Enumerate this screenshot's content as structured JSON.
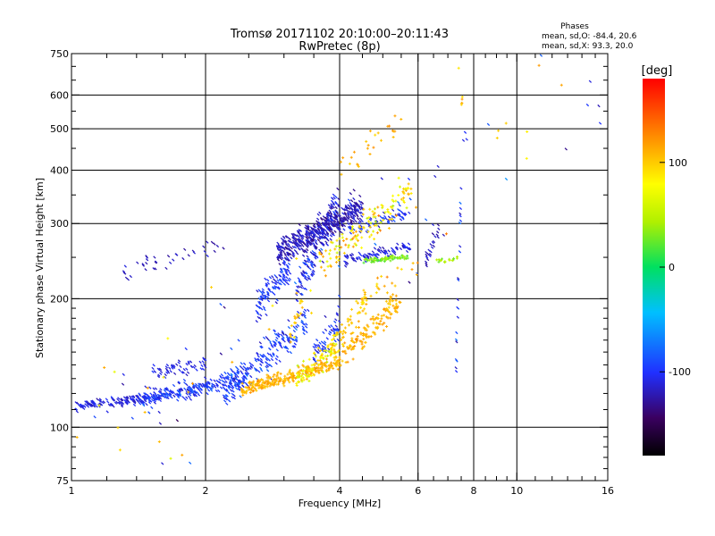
{
  "chart_data": {
    "type": "scatter",
    "title": "Tromsø 20171102 20:10:00–20:11:43",
    "subtitle": "RwPretec (8p)",
    "xlabel": "Frequency [MHz]",
    "ylabel": "Stationary phase Virtual Height [km]",
    "x_scale": "log",
    "y_scale": "log",
    "xlim": [
      1,
      16
    ],
    "ylim": [
      75,
      750
    ],
    "x_ticks": [
      1,
      2,
      4,
      6,
      8,
      10,
      16
    ],
    "x_tick_labels": [
      "1",
      "2",
      "4",
      "6",
      "8",
      "10",
      "16"
    ],
    "x_minor_ticks": [
      1.2,
      1.4,
      1.6,
      1.8,
      2.5,
      3,
      3.5,
      4.5,
      5,
      5.5,
      6.5,
      7,
      7.5,
      8.5,
      9,
      9.5,
      11,
      12,
      13,
      14,
      15
    ],
    "y_ticks": [
      75,
      100,
      200,
      300,
      400,
      500,
      600,
      750
    ],
    "y_tick_labels": [
      "75",
      "100",
      "200",
      "300",
      "400",
      "500",
      "600",
      "750"
    ],
    "y_minor_ticks": [
      80,
      85,
      90,
      95,
      110,
      120,
      130,
      140,
      150,
      160,
      170,
      180,
      190,
      250,
      350,
      450,
      550,
      650,
      700
    ],
    "grid": true,
    "grid_x": [
      2,
      4,
      6,
      8,
      10
    ],
    "grid_y": [
      100,
      200,
      300,
      400,
      500,
      600
    ],
    "stats": {
      "heading": "Phases",
      "line_o": "mean, sd,O: -84.4, 20.6",
      "line_x": "mean, sd,X:  93.3, 20.0"
    },
    "colorbar": {
      "label": "[deg]",
      "range": [
        -180,
        180
      ],
      "ticks": [
        -100,
        0,
        100
      ],
      "tick_labels": [
        "-100",
        "0",
        "100"
      ],
      "colormap": "rainbow"
    },
    "series": [
      {
        "shape": "diagonal-dash",
        "segments": [
          {
            "f1": 1.02,
            "f2": 1.6,
            "h1": 112,
            "h2": 118,
            "n": 150,
            "spread": 0.02,
            "phase": -110,
            "sp": 10
          },
          {
            "f1": 1.4,
            "f2": 2.5,
            "h1": 116,
            "h2": 130,
            "n": 260,
            "spread": 0.035,
            "phase": -100,
            "sp": 15
          },
          {
            "f1": 1.5,
            "f2": 2.0,
            "h1": 135,
            "h2": 140,
            "n": 60,
            "spread": 0.03,
            "phase": -110,
            "sp": 10
          },
          {
            "f1": 2.2,
            "f2": 3.4,
            "h1": 122,
            "h2": 178,
            "n": 220,
            "spread": 0.05,
            "phase": -95,
            "sp": 20
          },
          {
            "f1": 2.6,
            "f2": 3.1,
            "h1": 190,
            "h2": 240,
            "n": 120,
            "spread": 0.06,
            "phase": -100,
            "sp": 15
          },
          {
            "f1": 3.2,
            "f2": 4.0,
            "h1": 210,
            "h2": 340,
            "n": 170,
            "spread": 0.05,
            "phase": -105,
            "sp": 20
          },
          {
            "f1": 2.9,
            "f2": 4.5,
            "h1": 255,
            "h2": 330,
            "n": 480,
            "spread": 0.05,
            "phase": -120,
            "sp": 15
          },
          {
            "f1": 4.1,
            "f2": 5.8,
            "h1": 245,
            "h2": 265,
            "n": 90,
            "spread": 0.02,
            "phase": -110,
            "sp": 10
          },
          {
            "f1": 4.2,
            "f2": 5.8,
            "h1": 290,
            "h2": 320,
            "n": 60,
            "spread": 0.03,
            "phase": -100,
            "sp": 15
          },
          {
            "f1": 3.5,
            "f2": 4.0,
            "h1": 145,
            "h2": 175,
            "n": 60,
            "spread": 0.05,
            "phase": -100,
            "sp": 20
          },
          {
            "f1": 1.3,
            "f2": 2.2,
            "h1": 230,
            "h2": 270,
            "n": 40,
            "spread": 0.04,
            "phase": -120,
            "sp": 10
          },
          {
            "f1": 6.2,
            "f2": 6.7,
            "h1": 245,
            "h2": 290,
            "n": 24,
            "spread": 0.03,
            "phase": -120,
            "sp": 10
          },
          {
            "f1": 7.3,
            "f2": 7.5,
            "h1": 130,
            "h2": 340,
            "n": 22,
            "spread": 0.02,
            "phase": -100,
            "sp": 20
          },
          {
            "f1": 1.0,
            "f2": 16,
            "h1": 80,
            "h2": 700,
            "n": 60,
            "spread": 0.2,
            "phase": -100,
            "sp": 30
          }
        ]
      },
      {
        "shape": "plus",
        "segments": [
          {
            "f1": 2.4,
            "f2": 4.0,
            "h1": 122,
            "h2": 142,
            "n": 260,
            "spread": 0.02,
            "phase": 110,
            "sp": 12
          },
          {
            "f1": 3.2,
            "f2": 4.0,
            "h1": 130,
            "h2": 160,
            "n": 90,
            "spread": 0.04,
            "phase": 80,
            "sp": 30
          },
          {
            "f1": 4.0,
            "f2": 5.5,
            "h1": 145,
            "h2": 200,
            "n": 140,
            "spread": 0.04,
            "phase": 110,
            "sp": 12
          },
          {
            "f1": 3.8,
            "f2": 4.6,
            "h1": 150,
            "h2": 200,
            "n": 60,
            "spread": 0.04,
            "phase": 100,
            "sp": 15
          },
          {
            "f1": 4.5,
            "f2": 6.0,
            "h1": 205,
            "h2": 240,
            "n": 20,
            "spread": 0.04,
            "phase": 110,
            "sp": 15
          },
          {
            "f1": 3.6,
            "f2": 5.8,
            "h1": 240,
            "h2": 360,
            "n": 130,
            "spread": 0.05,
            "phase": 90,
            "sp": 40
          },
          {
            "f1": 4.5,
            "f2": 5.8,
            "h1": 245,
            "h2": 252,
            "n": 70,
            "spread": 0.01,
            "phase": 30,
            "sp": 15
          },
          {
            "f1": 3.1,
            "f2": 3.3,
            "h1": 160,
            "h2": 200,
            "n": 20,
            "spread": 0.04,
            "phase": 100,
            "sp": 15
          },
          {
            "f1": 4.0,
            "f2": 5.5,
            "h1": 400,
            "h2": 520,
            "n": 26,
            "spread": 0.04,
            "phase": 110,
            "sp": 15
          },
          {
            "f1": 6.6,
            "f2": 7.5,
            "h1": 245,
            "h2": 250,
            "n": 16,
            "spread": 0.01,
            "phase": 40,
            "sp": 20
          },
          {
            "f1": 7.5,
            "f2": 7.6,
            "h1": 560,
            "h2": 620,
            "n": 5,
            "spread": 0.03,
            "phase": 110,
            "sp": 15
          },
          {
            "f1": 1.0,
            "f2": 16,
            "h1": 80,
            "h2": 700,
            "n": 40,
            "spread": 0.2,
            "phase": 100,
            "sp": 30
          }
        ]
      }
    ]
  }
}
